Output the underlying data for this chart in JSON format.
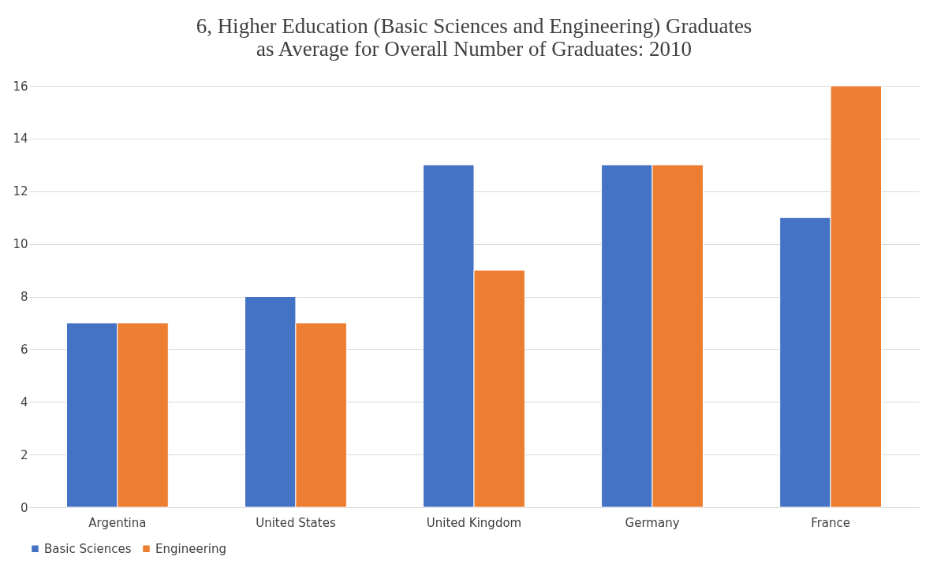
{
  "chart_data": {
    "type": "bar",
    "title": "6, Higher Education (Basic Sciences and Engineering) Graduates\nas Average for Overall Number of Graduates: 2010",
    "categories": [
      "Argentina",
      "United States",
      "United Kingdom",
      "Germany",
      "France"
    ],
    "series": [
      {
        "name": "Basic Sciences",
        "color": "#4472c4",
        "values": [
          7,
          8,
          13,
          13,
          11
        ]
      },
      {
        "name": "Engineering",
        "color": "#ed7d31",
        "values": [
          7,
          7,
          9,
          13,
          16
        ]
      }
    ],
    "ylim": [
      0,
      16
    ],
    "yticks": [
      0,
      2,
      4,
      6,
      8,
      10,
      12,
      14,
      16
    ],
    "grid": "y",
    "legend": "bottom"
  }
}
